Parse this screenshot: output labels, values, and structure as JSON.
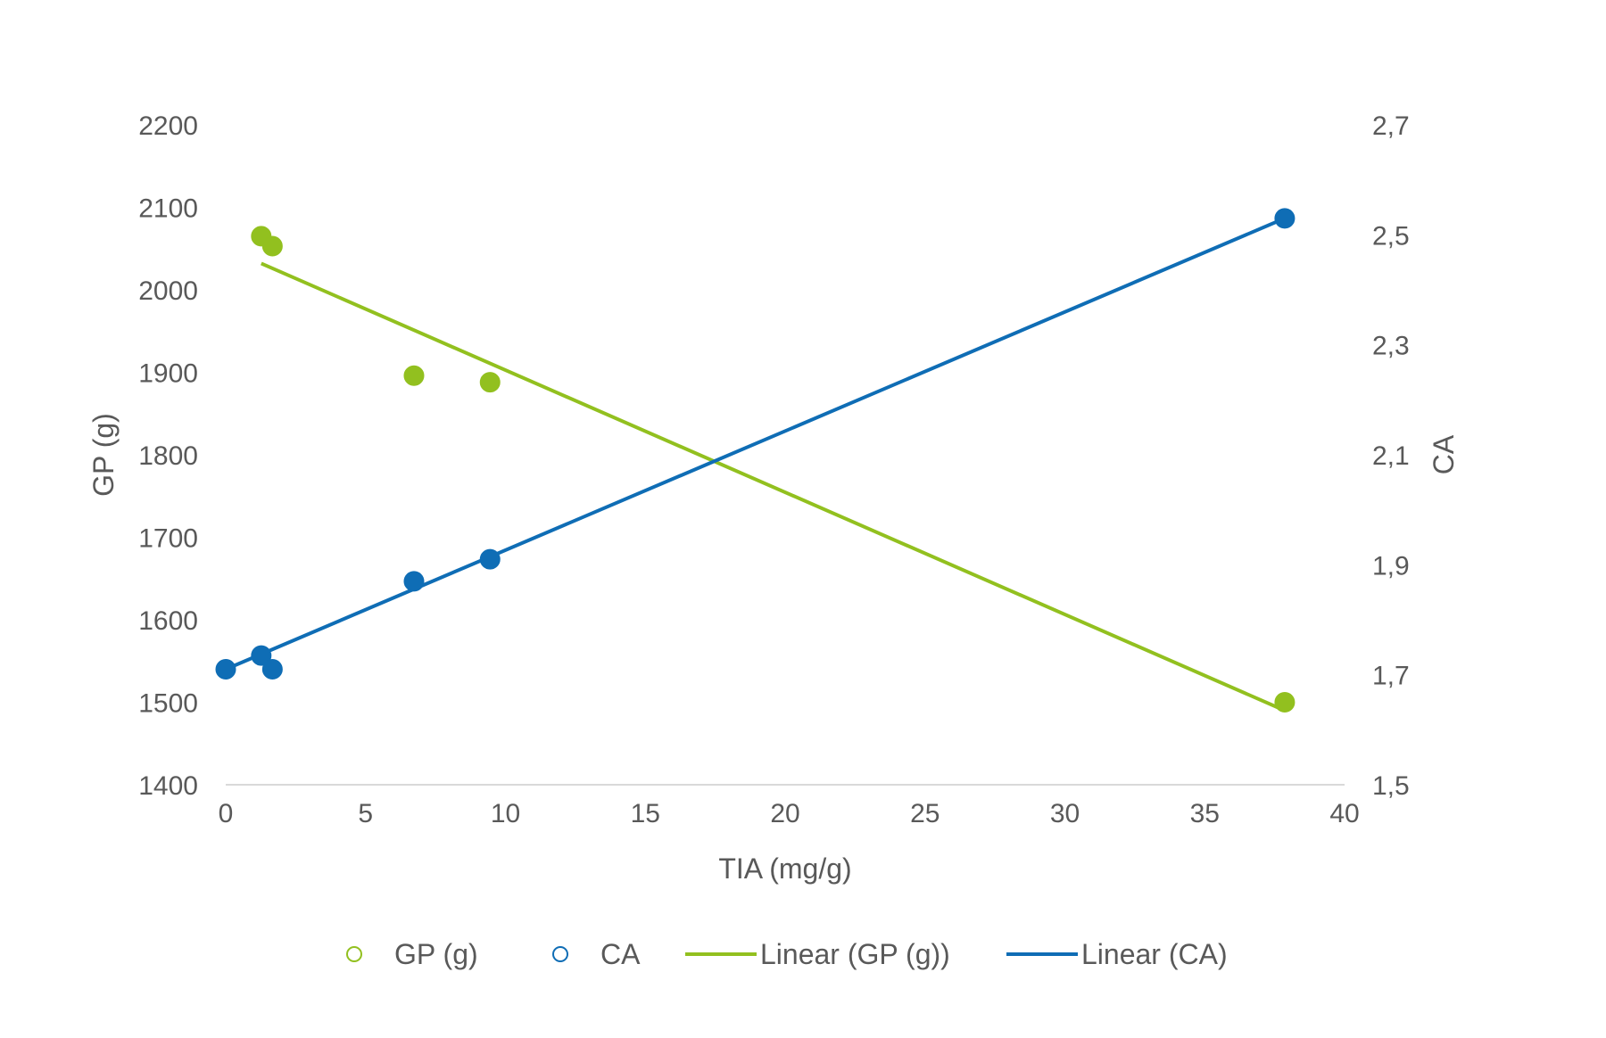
{
  "chart_data": {
    "type": "scatter",
    "title": "",
    "xlabel": "TIA (mg/g)",
    "ylabel": "GP (g)",
    "y2label": "CA",
    "xlim": [
      0,
      40
    ],
    "ylim": [
      1400,
      2200
    ],
    "y2lim": [
      1.5,
      2.7
    ],
    "x_ticks": [
      "0",
      "5",
      "10",
      "15",
      "20",
      "25",
      "30",
      "35",
      "40"
    ],
    "y_ticks": [
      "1400",
      "1500",
      "1600",
      "1700",
      "1800",
      "1900",
      "2000",
      "2100",
      "2200"
    ],
    "y2_ticks": [
      "1,5",
      "1,7",
      "1,9",
      "2,1",
      "2,3",
      "2,5",
      "2,7"
    ],
    "grid": false,
    "legend_position": "bottom",
    "series": [
      {
        "name": "GP (g)",
        "axis": "left",
        "color": "#92c01f",
        "x": [
          1.27,
          1.67,
          6.73,
          9.45,
          37.86
        ],
        "y": [
          2065,
          2053,
          1896,
          1888,
          1500
        ]
      },
      {
        "name": "CA",
        "axis": "right",
        "color": "#0f6db5",
        "x": [
          0,
          1.27,
          1.67,
          6.73,
          9.45,
          37.86
        ],
        "y": [
          1.71,
          1.735,
          1.71,
          1.87,
          1.91,
          2.53
        ]
      }
    ],
    "trendlines": [
      {
        "name": "Linear (GP (g))",
        "axis": "left",
        "color": "#92c01f",
        "x": [
          1.27,
          37.86
        ],
        "y": [
          2032,
          1490
        ]
      },
      {
        "name": "Linear (CA)",
        "axis": "right",
        "color": "#0f6db5",
        "x": [
          0,
          37.86
        ],
        "y": [
          1.71,
          2.53
        ]
      }
    ]
  }
}
